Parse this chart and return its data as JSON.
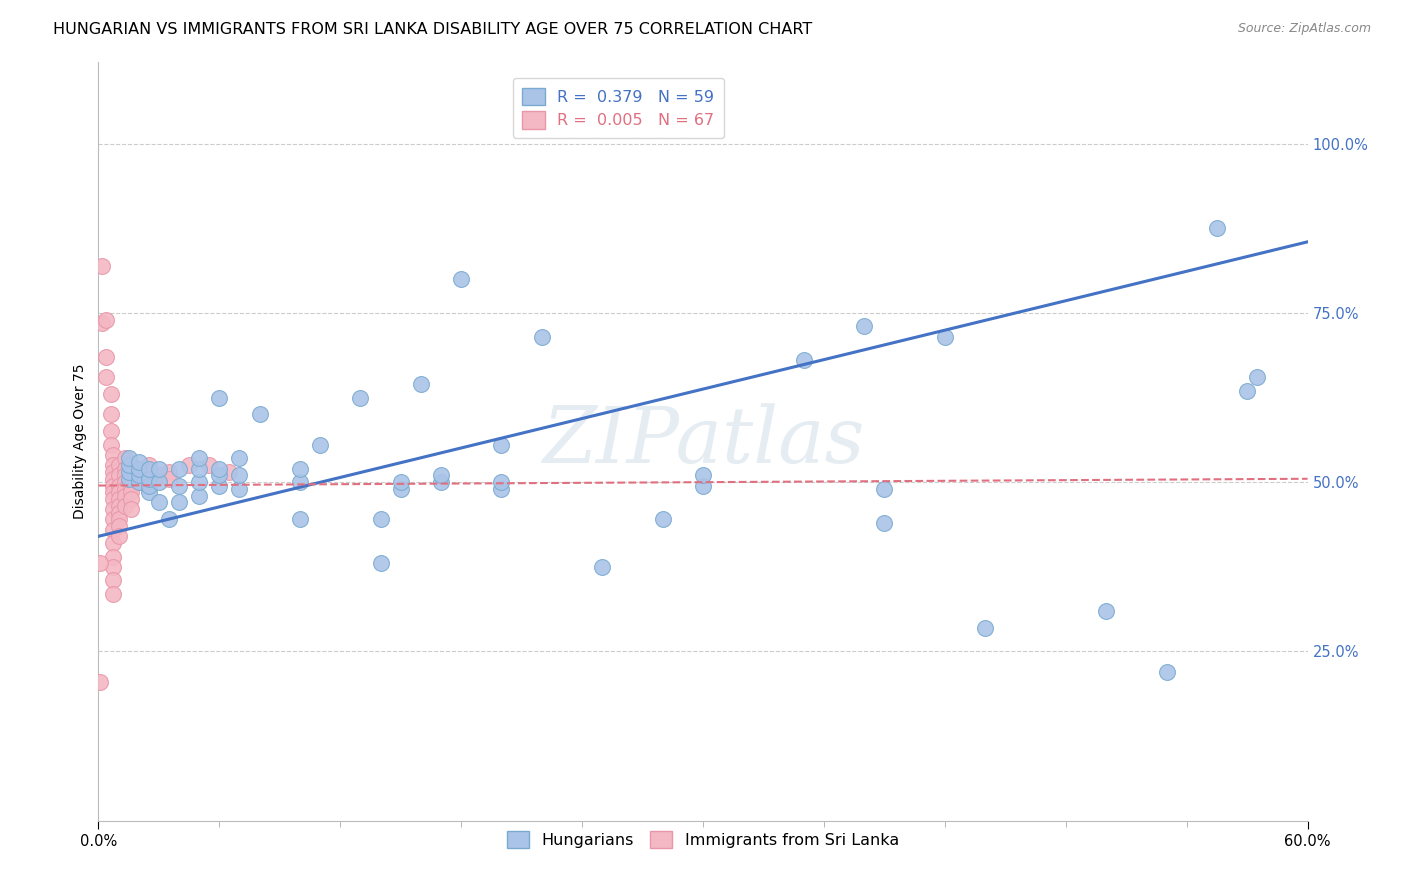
{
  "title": "HUNGARIAN VS IMMIGRANTS FROM SRI LANKA DISABILITY AGE OVER 75 CORRELATION CHART",
  "source": "Source: ZipAtlas.com",
  "ylabel": "Disability Age Over 75",
  "ytick_labels": [
    "100.0%",
    "75.0%",
    "50.0%",
    "25.0%"
  ],
  "ytick_values": [
    1.0,
    0.75,
    0.5,
    0.25
  ],
  "xmin": 0.0,
  "xmax": 0.6,
  "ymin": 0.0,
  "ymax": 1.12,
  "watermark": "ZIPatlas",
  "blue_scatter": [
    [
      0.015,
      0.505
    ],
    [
      0.015,
      0.515
    ],
    [
      0.015,
      0.525
    ],
    [
      0.015,
      0.535
    ],
    [
      0.02,
      0.5
    ],
    [
      0.02,
      0.51
    ],
    [
      0.02,
      0.52
    ],
    [
      0.02,
      0.53
    ],
    [
      0.025,
      0.485
    ],
    [
      0.025,
      0.495
    ],
    [
      0.025,
      0.505
    ],
    [
      0.025,
      0.52
    ],
    [
      0.03,
      0.47
    ],
    [
      0.03,
      0.5
    ],
    [
      0.03,
      0.52
    ],
    [
      0.035,
      0.445
    ],
    [
      0.04,
      0.47
    ],
    [
      0.04,
      0.495
    ],
    [
      0.04,
      0.52
    ],
    [
      0.05,
      0.48
    ],
    [
      0.05,
      0.5
    ],
    [
      0.05,
      0.52
    ],
    [
      0.05,
      0.535
    ],
    [
      0.06,
      0.495
    ],
    [
      0.06,
      0.51
    ],
    [
      0.06,
      0.52
    ],
    [
      0.06,
      0.625
    ],
    [
      0.07,
      0.49
    ],
    [
      0.07,
      0.51
    ],
    [
      0.07,
      0.535
    ],
    [
      0.08,
      0.6
    ],
    [
      0.1,
      0.445
    ],
    [
      0.1,
      0.5
    ],
    [
      0.1,
      0.52
    ],
    [
      0.11,
      0.555
    ],
    [
      0.13,
      0.625
    ],
    [
      0.14,
      0.38
    ],
    [
      0.14,
      0.445
    ],
    [
      0.15,
      0.49
    ],
    [
      0.15,
      0.5
    ],
    [
      0.16,
      0.645
    ],
    [
      0.17,
      0.5
    ],
    [
      0.17,
      0.51
    ],
    [
      0.18,
      0.8
    ],
    [
      0.2,
      0.49
    ],
    [
      0.2,
      0.5
    ],
    [
      0.2,
      0.555
    ],
    [
      0.22,
      0.715
    ],
    [
      0.25,
      0.375
    ],
    [
      0.28,
      0.445
    ],
    [
      0.3,
      0.495
    ],
    [
      0.3,
      0.51
    ],
    [
      0.35,
      0.68
    ],
    [
      0.38,
      0.73
    ],
    [
      0.39,
      0.49
    ],
    [
      0.39,
      0.44
    ],
    [
      0.42,
      0.715
    ],
    [
      0.44,
      0.285
    ],
    [
      0.5,
      0.31
    ],
    [
      0.53,
      0.22
    ],
    [
      0.555,
      0.875
    ],
    [
      0.57,
      0.635
    ],
    [
      0.575,
      0.655
    ]
  ],
  "pink_scatter": [
    [
      0.002,
      0.82
    ],
    [
      0.002,
      0.735
    ],
    [
      0.004,
      0.74
    ],
    [
      0.004,
      0.685
    ],
    [
      0.004,
      0.655
    ],
    [
      0.006,
      0.63
    ],
    [
      0.006,
      0.6
    ],
    [
      0.006,
      0.575
    ],
    [
      0.006,
      0.555
    ],
    [
      0.007,
      0.54
    ],
    [
      0.007,
      0.525
    ],
    [
      0.007,
      0.515
    ],
    [
      0.007,
      0.505
    ],
    [
      0.007,
      0.495
    ],
    [
      0.007,
      0.485
    ],
    [
      0.007,
      0.475
    ],
    [
      0.007,
      0.46
    ],
    [
      0.007,
      0.445
    ],
    [
      0.007,
      0.43
    ],
    [
      0.007,
      0.41
    ],
    [
      0.007,
      0.39
    ],
    [
      0.007,
      0.375
    ],
    [
      0.007,
      0.355
    ],
    [
      0.007,
      0.335
    ],
    [
      0.01,
      0.525
    ],
    [
      0.01,
      0.51
    ],
    [
      0.01,
      0.495
    ],
    [
      0.01,
      0.485
    ],
    [
      0.01,
      0.475
    ],
    [
      0.01,
      0.465
    ],
    [
      0.01,
      0.455
    ],
    [
      0.01,
      0.445
    ],
    [
      0.01,
      0.435
    ],
    [
      0.01,
      0.42
    ],
    [
      0.013,
      0.535
    ],
    [
      0.013,
      0.52
    ],
    [
      0.013,
      0.51
    ],
    [
      0.013,
      0.5
    ],
    [
      0.013,
      0.49
    ],
    [
      0.013,
      0.48
    ],
    [
      0.013,
      0.465
    ],
    [
      0.016,
      0.525
    ],
    [
      0.016,
      0.515
    ],
    [
      0.016,
      0.505
    ],
    [
      0.016,
      0.495
    ],
    [
      0.016,
      0.485
    ],
    [
      0.016,
      0.475
    ],
    [
      0.016,
      0.46
    ],
    [
      0.02,
      0.52
    ],
    [
      0.02,
      0.51
    ],
    [
      0.02,
      0.5
    ],
    [
      0.025,
      0.525
    ],
    [
      0.025,
      0.515
    ],
    [
      0.03,
      0.51
    ],
    [
      0.035,
      0.515
    ],
    [
      0.035,
      0.505
    ],
    [
      0.045,
      0.525
    ],
    [
      0.055,
      0.525
    ],
    [
      0.065,
      0.515
    ],
    [
      0.001,
      0.205
    ],
    [
      0.001,
      0.38
    ]
  ],
  "blue_line_color": "#4472c4",
  "pink_line_color": "#e07080",
  "dot_blue_facecolor": "#aac4e8",
  "dot_pink_facecolor": "#f4b8c4",
  "dot_blue_edgecolor": "#7aaad0",
  "dot_pink_edgecolor": "#e896a8",
  "background_color": "#ffffff",
  "grid_color": "#cccccc",
  "title_fontsize": 11.5,
  "axis_label_fontsize": 10,
  "tick_fontsize": 10.5,
  "legend_fontsize": 11.5
}
